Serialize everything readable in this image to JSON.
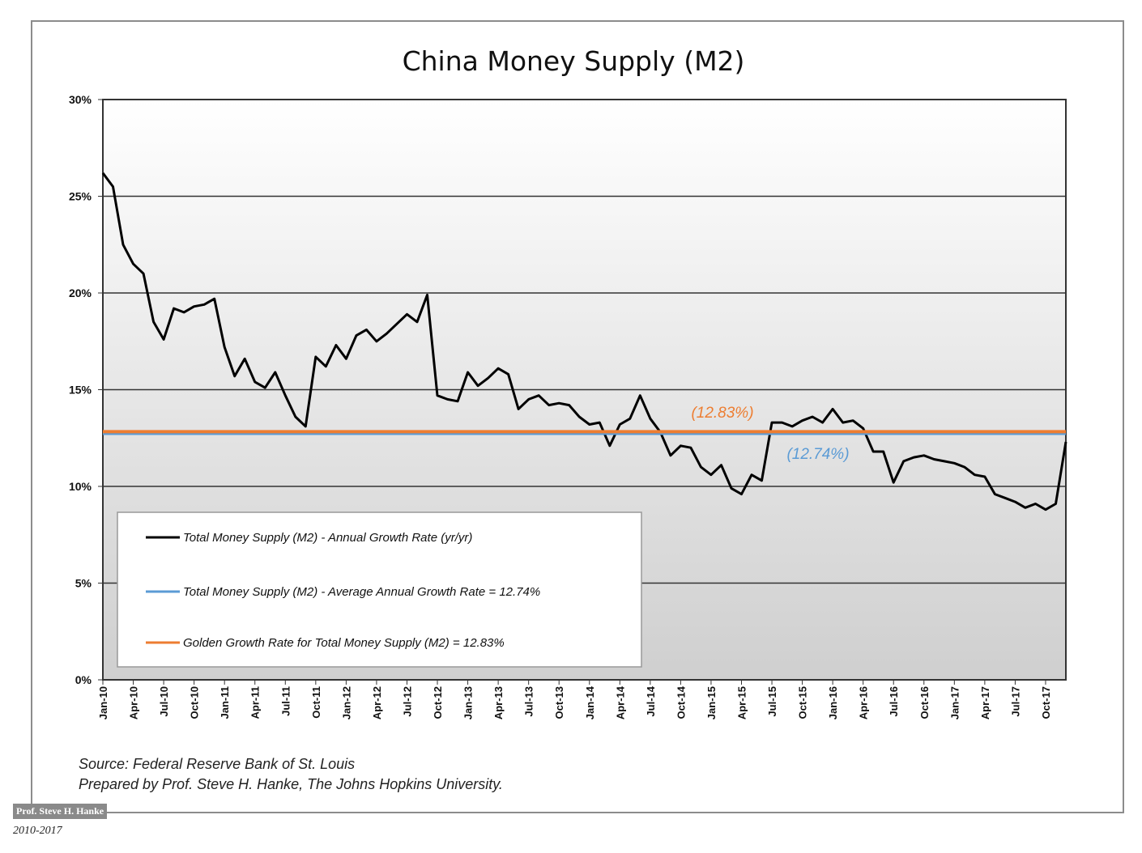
{
  "chart_data": {
    "type": "line",
    "title": "China Money Supply (M2)",
    "ylim": [
      0,
      30
    ],
    "yticks": [
      "0%",
      "5%",
      "10%",
      "15%",
      "20%",
      "25%",
      "30%"
    ],
    "xticks": [
      "Jan-10",
      "Apr-10",
      "Jul-10",
      "Oct-10",
      "Jan-11",
      "Apr-11",
      "Jul-11",
      "Oct-11",
      "Jan-12",
      "Apr-12",
      "Jul-12",
      "Oct-12",
      "Jan-13",
      "Apr-13",
      "Jul-13",
      "Oct-13",
      "Jan-14",
      "Apr-14",
      "Jul-14",
      "Oct-14",
      "Jan-15",
      "Apr-15",
      "Jul-15",
      "Oct-15",
      "Jan-16",
      "Apr-16",
      "Jul-16",
      "Oct-16",
      "Jan-17",
      "Apr-17",
      "Jul-17",
      "Oct-17"
    ],
    "grid": true,
    "series": [
      {
        "name": "Total Money Supply (M2) - Annual Growth Rate (yr/yr)",
        "color": "#000000",
        "values": [
          26.2,
          25.5,
          22.5,
          21.5,
          21.0,
          18.5,
          17.6,
          19.2,
          19.0,
          19.3,
          19.4,
          19.7,
          17.2,
          15.7,
          16.6,
          15.4,
          15.1,
          15.9,
          14.7,
          13.6,
          13.1,
          16.7,
          16.2,
          17.3,
          16.6,
          17.8,
          18.1,
          17.5,
          17.9,
          18.4,
          18.9,
          18.5,
          19.9,
          14.7,
          14.5,
          14.4,
          15.9,
          15.2,
          15.6,
          16.1,
          15.8,
          14.0,
          14.5,
          14.7,
          14.2,
          14.3,
          14.2,
          13.6,
          13.2,
          13.3,
          12.1,
          13.2,
          13.5,
          14.7,
          13.5,
          12.8,
          11.6,
          12.1,
          12.0,
          11.0,
          10.6,
          11.1,
          9.9,
          9.6,
          10.6,
          10.3,
          13.3,
          13.3,
          13.1,
          13.4,
          13.6,
          13.3,
          14.0,
          13.3,
          13.4,
          13.0,
          11.8,
          11.8,
          10.2,
          11.3,
          11.5,
          11.6,
          11.4,
          11.3,
          11.2,
          11.0,
          10.6,
          10.5,
          9.6,
          9.4,
          9.2,
          8.9,
          9.1,
          8.8,
          9.1,
          12.3
        ]
      },
      {
        "name": "Total Money Supply (M2) - Average Annual Growth Rate = 12.74%",
        "color": "#5b9bd5",
        "constant": 12.74
      },
      {
        "name": "Golden Growth Rate for Total Money Supply (M2) = 12.83%",
        "color": "#ed7d31",
        "constant": 12.83
      }
    ],
    "annotations": {
      "golden": "(12.83%)",
      "average": "(12.74%)"
    },
    "legend_position": "lower-left inside plot"
  },
  "source_line1": "Source: Federal Reserve Bank of St. Louis",
  "source_line2": "Prepared by Prof. Steve H. Hanke, The Johns Hopkins University.",
  "stamp": "Prof. Steve H. Hanke",
  "years": "2010-2017"
}
